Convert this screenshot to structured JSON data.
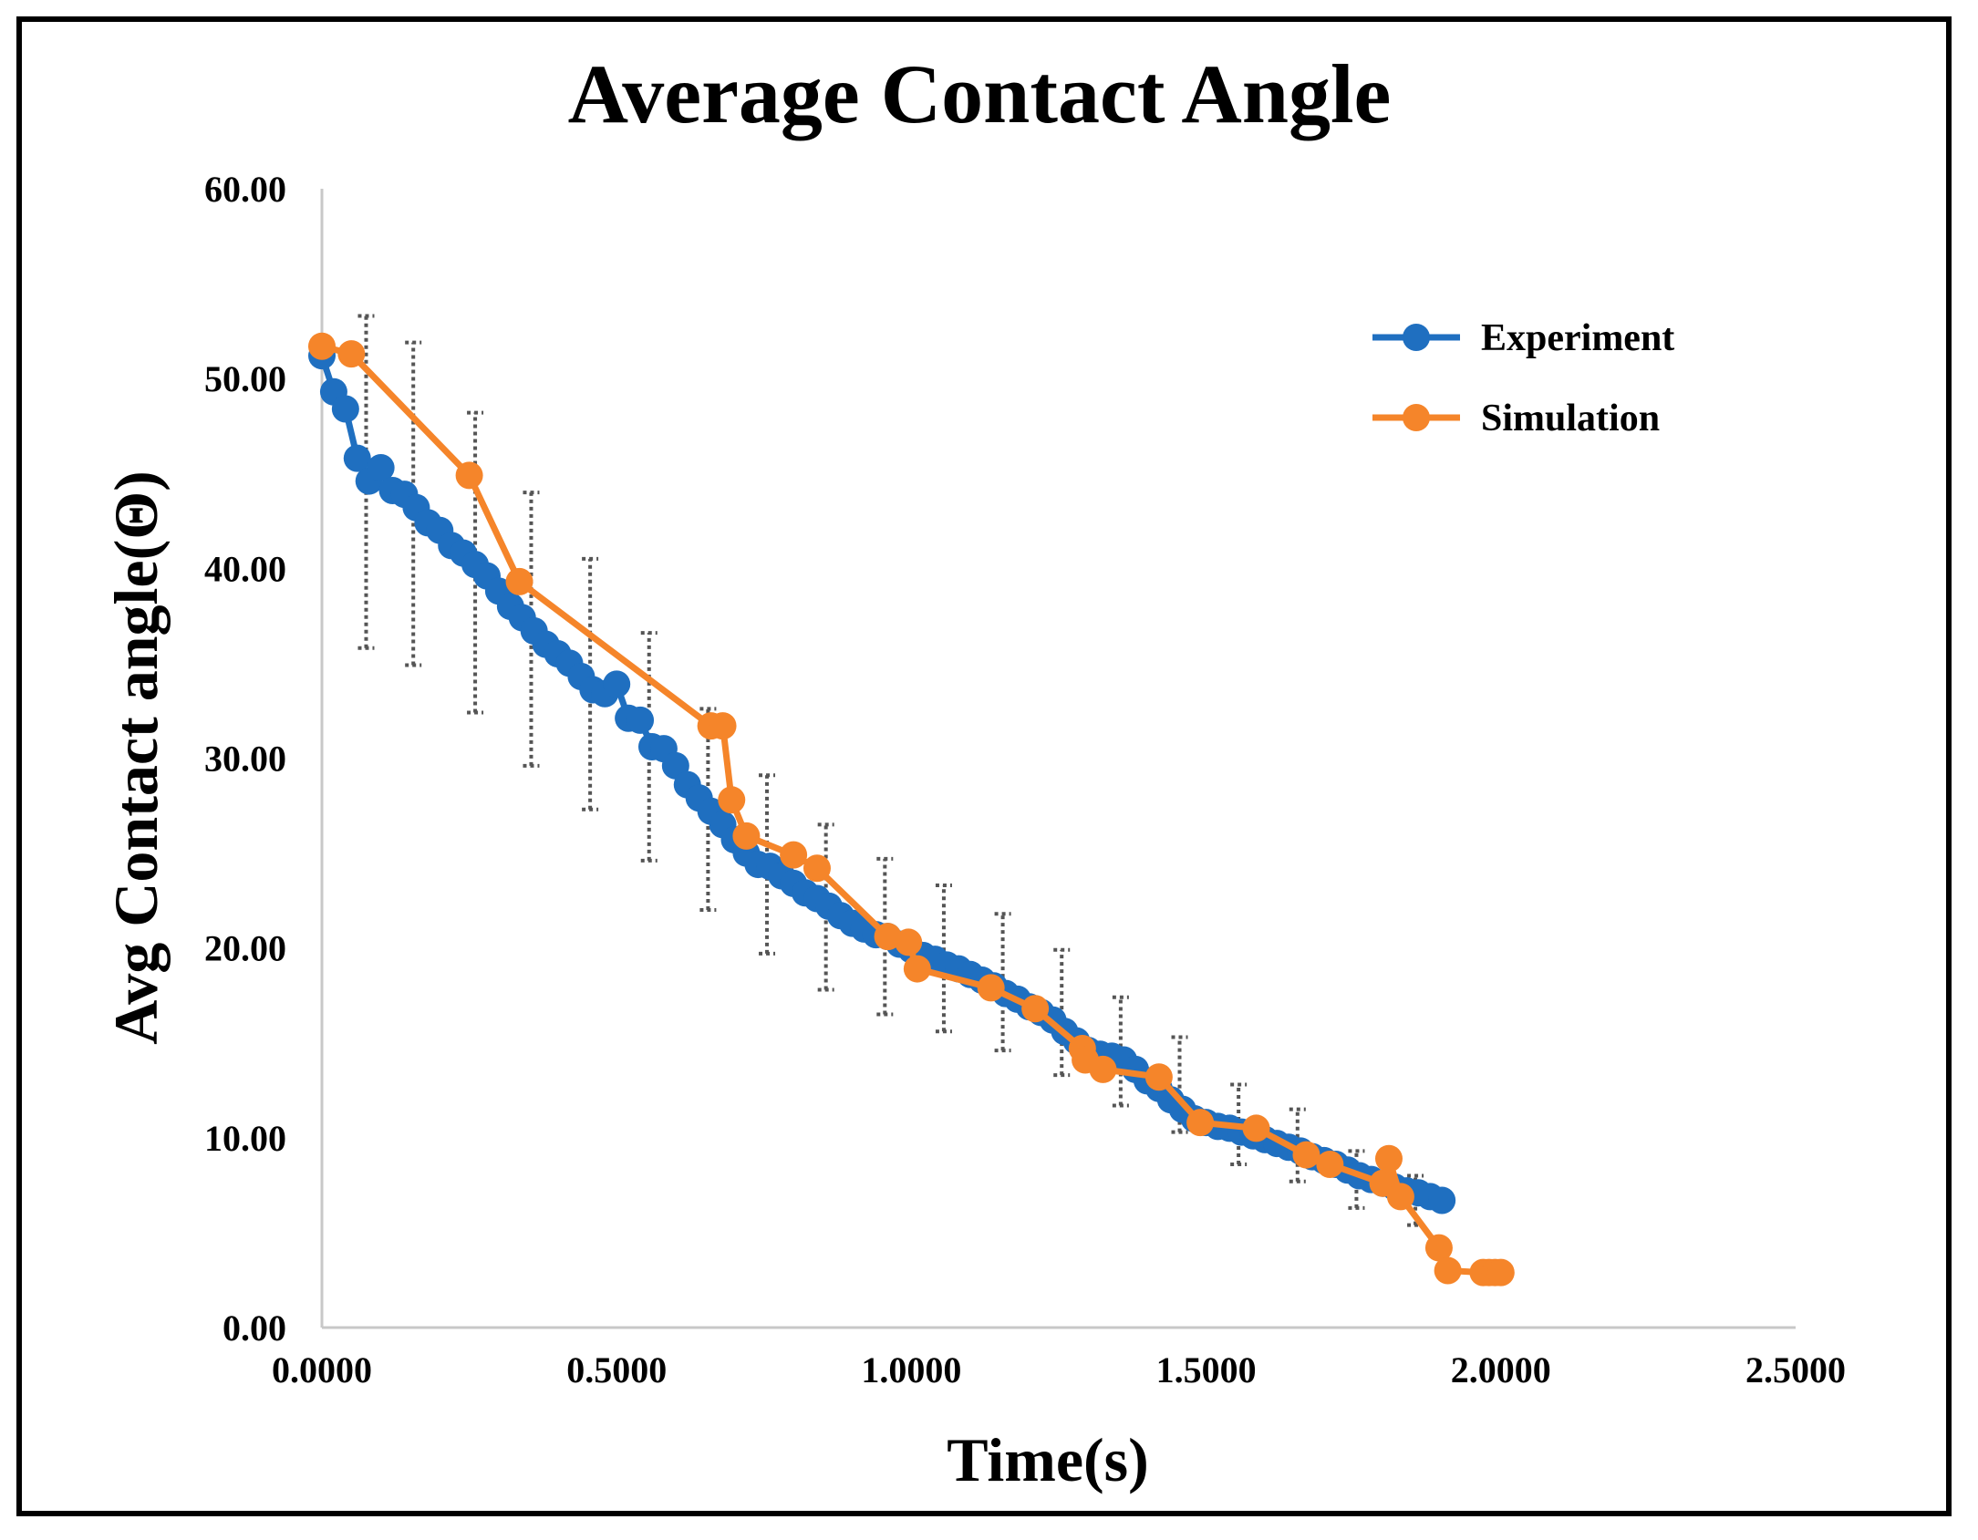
{
  "chart_data": {
    "type": "line",
    "title": "Average Contact Angle",
    "xlabel": "Time(s)",
    "ylabel": "Avg Contact angle(Θ)",
    "xlim": [
      0,
      2.5
    ],
    "ylim": [
      0,
      60
    ],
    "x_ticks": [
      "0.0000",
      "0.5000",
      "1.0000",
      "1.5000",
      "2.0000",
      "2.5000"
    ],
    "x_tick_values": [
      0,
      0.5,
      1.0,
      1.5,
      2.0,
      2.5
    ],
    "y_ticks": [
      "0.00",
      "10.00",
      "20.00",
      "30.00",
      "40.00",
      "50.00",
      "60.00"
    ],
    "y_tick_values": [
      0,
      10,
      20,
      30,
      40,
      50,
      60
    ],
    "grid": false,
    "legend_position": "top-right",
    "series": [
      {
        "name": "Experiment",
        "color": "#1f6fc0",
        "x": [
          0.0,
          0.02,
          0.04,
          0.06,
          0.08,
          0.1,
          0.12,
          0.14,
          0.16,
          0.18,
          0.2,
          0.22,
          0.24,
          0.26,
          0.28,
          0.3,
          0.32,
          0.34,
          0.36,
          0.38,
          0.4,
          0.42,
          0.44,
          0.46,
          0.48,
          0.5,
          0.52,
          0.54,
          0.56,
          0.58,
          0.6,
          0.62,
          0.64,
          0.66,
          0.68,
          0.7,
          0.72,
          0.74,
          0.76,
          0.78,
          0.8,
          0.82,
          0.84,
          0.86,
          0.88,
          0.9,
          0.92,
          0.94,
          0.96,
          0.98,
          1.0,
          1.02,
          1.04,
          1.06,
          1.08,
          1.1,
          1.12,
          1.14,
          1.16,
          1.18,
          1.2,
          1.22,
          1.24,
          1.26,
          1.28,
          1.3,
          1.32,
          1.34,
          1.36,
          1.38,
          1.4,
          1.42,
          1.44,
          1.46,
          1.48,
          1.5,
          1.52,
          1.54,
          1.56,
          1.58,
          1.6,
          1.62,
          1.64,
          1.66,
          1.68,
          1.7,
          1.72,
          1.74,
          1.76,
          1.78,
          1.8,
          1.82,
          1.84,
          1.86,
          1.88,
          1.9
        ],
        "values": [
          51.2,
          49.3,
          48.4,
          45.8,
          44.6,
          45.3,
          44.1,
          43.9,
          43.2,
          42.4,
          42.0,
          41.2,
          40.8,
          40.2,
          39.6,
          38.8,
          38.0,
          37.4,
          36.7,
          36.0,
          35.5,
          35.0,
          34.3,
          33.6,
          33.4,
          33.9,
          32.1,
          32.0,
          30.6,
          30.5,
          29.6,
          28.6,
          27.9,
          27.2,
          26.5,
          25.7,
          25.0,
          24.4,
          24.3,
          23.8,
          23.4,
          22.9,
          22.6,
          22.2,
          21.7,
          21.3,
          21.0,
          20.7,
          20.6,
          20.2,
          19.9,
          19.6,
          19.4,
          19.1,
          18.9,
          18.6,
          18.3,
          18.0,
          17.6,
          17.3,
          16.9,
          16.6,
          16.2,
          15.6,
          15.1,
          14.6,
          14.4,
          14.3,
          14.1,
          13.6,
          13.0,
          12.6,
          12.0,
          11.5,
          11.0,
          10.8,
          10.6,
          10.5,
          10.3,
          10.1,
          9.9,
          9.7,
          9.5,
          9.3,
          9.0,
          8.8,
          8.6,
          8.3,
          8.0,
          7.8,
          7.6,
          7.4,
          7.2,
          7.1,
          6.9,
          6.7
        ]
      },
      {
        "name": "Simulation",
        "color": "#f5852a",
        "x": [
          0.0,
          0.05,
          0.25,
          0.335,
          0.66,
          0.68,
          0.695,
          0.72,
          0.8,
          0.84,
          0.96,
          0.995,
          1.01,
          1.135,
          1.21,
          1.29,
          1.295,
          1.325,
          1.42,
          1.49,
          1.585,
          1.67,
          1.71,
          1.8,
          1.81,
          1.83,
          1.895,
          1.91,
          1.97,
          1.98,
          1.99,
          2.0
        ],
        "values": [
          51.7,
          51.3,
          44.9,
          39.3,
          31.7,
          31.7,
          27.8,
          25.9,
          24.9,
          24.2,
          20.6,
          20.3,
          18.9,
          17.9,
          16.8,
          14.7,
          14.1,
          13.6,
          13.2,
          10.8,
          10.5,
          9.1,
          8.6,
          7.6,
          8.9,
          6.9,
          4.2,
          3.0,
          2.9,
          2.9,
          2.9,
          2.9
        ]
      }
    ],
    "error_bars": {
      "name": "Experiment",
      "color": "#555555",
      "x": [
        0.075,
        0.155,
        0.26,
        0.355,
        0.455,
        0.555,
        0.655,
        0.755,
        0.855,
        0.955,
        1.055,
        1.155,
        1.255,
        1.355,
        1.455,
        1.555,
        1.655,
        1.755,
        1.855
      ],
      "low": [
        35.8,
        34.9,
        32.4,
        29.6,
        27.3,
        24.6,
        22.0,
        19.7,
        17.8,
        16.5,
        15.6,
        14.6,
        13.3,
        11.7,
        10.3,
        8.6,
        7.7,
        6.3,
        5.4
      ],
      "high": [
        53.3,
        51.9,
        48.2,
        44.0,
        40.5,
        36.6,
        32.6,
        29.1,
        26.5,
        24.7,
        23.3,
        21.8,
        19.9,
        17.4,
        15.3,
        12.8,
        11.5,
        9.3,
        8.0
      ]
    }
  }
}
